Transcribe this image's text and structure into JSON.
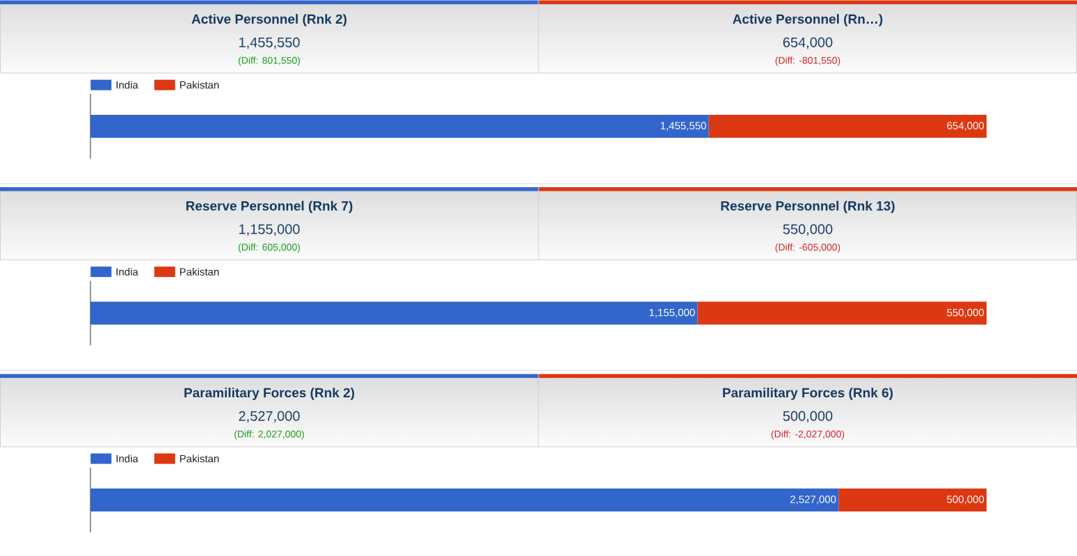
{
  "chart_data": [
    {
      "type": "bar",
      "orientation": "horizontal",
      "stacked": true,
      "annotations": [
        "Active Personnel (Rnk 2)",
        "1,455,550",
        "(Diff: 801,550)",
        "Active Personnel (Rn…)",
        "654,000",
        "(Diff: -801,550)"
      ],
      "categories": [
        null
      ],
      "series": [
        {
          "name": "India",
          "color": "#3366cc",
          "values": [
            1455550
          ],
          "value_labels": [
            "1,455,550"
          ]
        },
        {
          "name": "Pakistan",
          "color": "#dc3912",
          "values": [
            654000
          ],
          "value_labels": [
            "654,000"
          ]
        }
      ],
      "xlim": [
        0,
        2109550
      ],
      "legend": "top left"
    },
    {
      "type": "bar",
      "orientation": "horizontal",
      "stacked": true,
      "annotations": [
        "Reserve Personnel (Rnk 7)",
        "1,155,000",
        "(Diff: 605,000)",
        "Reserve Personnel (Rnk 13)",
        "550,000",
        "(Diff: -605,000)"
      ],
      "categories": [
        null
      ],
      "series": [
        {
          "name": "India",
          "color": "#3366cc",
          "values": [
            1155000
          ],
          "value_labels": [
            "1,155,000"
          ]
        },
        {
          "name": "Pakistan",
          "color": "#dc3912",
          "values": [
            550000
          ],
          "value_labels": [
            "550,000"
          ]
        }
      ],
      "xlim": [
        0,
        1705000
      ],
      "legend": "top left"
    },
    {
      "type": "bar",
      "orientation": "horizontal",
      "stacked": true,
      "annotations": [
        "Paramilitary Forces (Rnk 2)",
        "2,527,000",
        "(Diff: 2,027,000)",
        "Paramilitary Forces (Rnk 6)",
        "500,000",
        "(Diff: -2,027,000)"
      ],
      "categories": [
        null
      ],
      "series": [
        {
          "name": "India",
          "color": "#3366cc",
          "values": [
            2527000
          ],
          "value_labels": [
            "2,527,000"
          ]
        },
        {
          "name": "Pakistan",
          "color": "#dc3912",
          "values": [
            500000
          ],
          "value_labels": [
            "500,000"
          ]
        }
      ],
      "xlim": [
        0,
        3027000
      ],
      "legend": "top left"
    }
  ]
}
